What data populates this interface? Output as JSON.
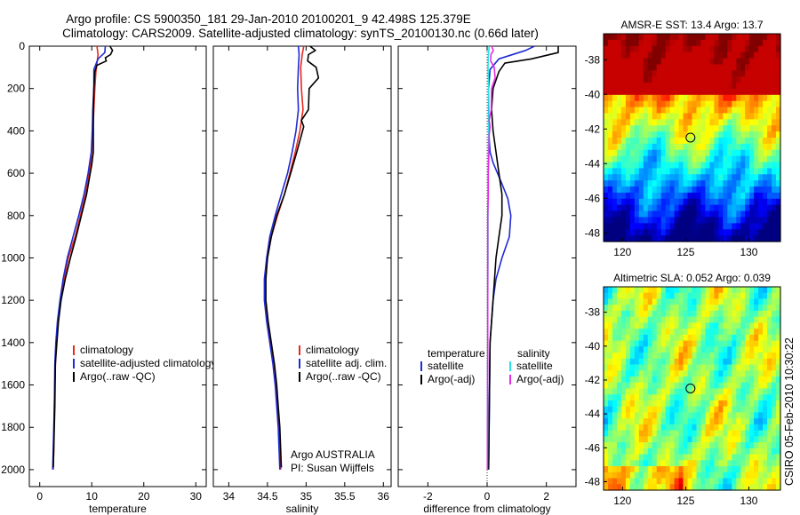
{
  "header": {
    "line1": "Argo profile: CS 5900350_181 29-Jan-2010 20100201_9 42.498S 125.379E",
    "line2": "Climatology: CARS2009. Satellite-adjusted climatology: synTS_20100130.nc (0.66d later)"
  },
  "side_note": "CSIRO 05-Feb-2010 10:30:22",
  "colors": {
    "climatology": "#e8281e",
    "satellite": "#1f2bd4",
    "argo": "#000000",
    "salinity_sat": "#2ae0e6",
    "salinity_argo": "#e62ae6"
  },
  "chart_data": [
    {
      "type": "line",
      "xlabel": "temperature",
      "x_ticks": [
        "0",
        "10",
        "20",
        "30"
      ],
      "y_ticks": [
        "0",
        "200",
        "400",
        "600",
        "800",
        "1000",
        "1200",
        "1400",
        "1600",
        "1800",
        "2000"
      ],
      "xlim": [
        -2,
        32
      ],
      "ylim": [
        2080,
        0
      ],
      "legend": [
        "climatology",
        "satellite-adjusted climatology",
        "Argo(..raw -QC)"
      ],
      "series": [
        {
          "name": "climatology",
          "color": "#e8281e",
          "points": [
            [
              11,
              0
            ],
            [
              11.2,
              40
            ],
            [
              11,
              80
            ],
            [
              10.8,
              120
            ],
            [
              10.6,
              200
            ],
            [
              10.4,
              300
            ],
            [
              10.2,
              400
            ],
            [
              10,
              500
            ],
            [
              9.8,
              550
            ],
            [
              9.5,
              600
            ],
            [
              8.8,
              700
            ],
            [
              7.8,
              800
            ],
            [
              6.8,
              900
            ],
            [
              5.5,
              1000
            ],
            [
              4.7,
              1100
            ],
            [
              4,
              1200
            ],
            [
              3.5,
              1300
            ],
            [
              3.2,
              1400
            ],
            [
              3,
              1500
            ],
            [
              2.8,
              1700
            ],
            [
              2.7,
              1900
            ],
            [
              2.6,
              2000
            ]
          ]
        },
        {
          "name": "satellite-adjusted climatology",
          "color": "#1f2bd4",
          "points": [
            [
              12.6,
              0
            ],
            [
              12.5,
              30
            ],
            [
              11.2,
              60
            ],
            [
              10.4,
              110
            ],
            [
              10.4,
              200
            ],
            [
              10.2,
              300
            ],
            [
              10.1,
              400
            ],
            [
              9.9,
              500
            ],
            [
              9.6,
              550
            ],
            [
              9.3,
              600
            ],
            [
              8.5,
              700
            ],
            [
              7.5,
              800
            ],
            [
              6.4,
              900
            ],
            [
              5.3,
              1000
            ],
            [
              4.5,
              1100
            ],
            [
              3.9,
              1200
            ],
            [
              3.4,
              1300
            ],
            [
              3.1,
              1400
            ],
            [
              2.9,
              1500
            ],
            [
              2.8,
              1700
            ],
            [
              2.6,
              1900
            ],
            [
              2.5,
              2000
            ]
          ]
        },
        {
          "name": "Argo(..raw -QC)",
          "color": "#000000",
          "points": [
            [
              13.5,
              0
            ],
            [
              14,
              20
            ],
            [
              13.6,
              40
            ],
            [
              12.6,
              55
            ],
            [
              12.8,
              70
            ],
            [
              11,
              90
            ],
            [
              10.6,
              120
            ],
            [
              10.4,
              200
            ],
            [
              10.3,
              300
            ],
            [
              10.3,
              400
            ],
            [
              10.3,
              500
            ],
            [
              10,
              560
            ],
            [
              9.7,
              600
            ],
            [
              9,
              700
            ],
            [
              8,
              800
            ],
            [
              7,
              900
            ],
            [
              5.9,
              1000
            ],
            [
              4.9,
              1100
            ],
            [
              4.1,
              1200
            ],
            [
              3.6,
              1300
            ],
            [
              3.3,
              1400
            ],
            [
              3,
              1500
            ],
            [
              2.9,
              1700
            ],
            [
              2.7,
              1900
            ],
            [
              2.6,
              1990
            ]
          ]
        }
      ]
    },
    {
      "type": "line",
      "xlabel": "salinity",
      "x_ticks": [
        "34",
        "34.5",
        "35",
        "35.5",
        "36"
      ],
      "xlim": [
        33.8,
        36.1
      ],
      "ylim": [
        2080,
        0
      ],
      "legend": [
        "climatology",
        "satellite adj. clim.",
        "Argo(..raw -QC)"
      ],
      "annotation": [
        "Argo AUSTRALIA",
        "PI: Susan Wijffels"
      ],
      "series": [
        {
          "name": "climatology",
          "color": "#e8281e",
          "points": [
            [
              34.97,
              0
            ],
            [
              34.95,
              40
            ],
            [
              34.93,
              100
            ],
            [
              34.94,
              200
            ],
            [
              34.96,
              300
            ],
            [
              34.92,
              400
            ],
            [
              34.86,
              500
            ],
            [
              34.79,
              600
            ],
            [
              34.72,
              700
            ],
            [
              34.63,
              800
            ],
            [
              34.55,
              900
            ],
            [
              34.5,
              1000
            ],
            [
              34.47,
              1100
            ],
            [
              34.47,
              1200
            ],
            [
              34.5,
              1300
            ],
            [
              34.54,
              1400
            ],
            [
              34.58,
              1500
            ],
            [
              34.61,
              1600
            ],
            [
              34.63,
              1700
            ],
            [
              34.65,
              1800
            ],
            [
              34.66,
              1900
            ],
            [
              34.67,
              2000
            ]
          ]
        },
        {
          "name": "satellite adj. clim.",
          "color": "#1f2bd4",
          "points": [
            [
              34.9,
              0
            ],
            [
              34.91,
              40
            ],
            [
              34.9,
              100
            ],
            [
              34.89,
              200
            ],
            [
              34.9,
              300
            ],
            [
              34.87,
              400
            ],
            [
              34.82,
              500
            ],
            [
              34.76,
              600
            ],
            [
              34.68,
              700
            ],
            [
              34.6,
              800
            ],
            [
              34.53,
              900
            ],
            [
              34.49,
              1000
            ],
            [
              34.46,
              1100
            ],
            [
              34.46,
              1200
            ],
            [
              34.49,
              1300
            ],
            [
              34.53,
              1400
            ],
            [
              34.57,
              1500
            ],
            [
              34.6,
              1600
            ],
            [
              34.62,
              1700
            ],
            [
              34.64,
              1800
            ],
            [
              34.65,
              1900
            ],
            [
              34.66,
              2000
            ]
          ]
        },
        {
          "name": "Argo(..raw -QC)",
          "color": "#000000",
          "points": [
            [
              35.05,
              0
            ],
            [
              35.12,
              20
            ],
            [
              35.03,
              40
            ],
            [
              35.02,
              70
            ],
            [
              35.13,
              100
            ],
            [
              35.16,
              150
            ],
            [
              35.04,
              200
            ],
            [
              35.03,
              300
            ],
            [
              34.94,
              350
            ],
            [
              34.97,
              380
            ],
            [
              34.94,
              420
            ],
            [
              34.88,
              500
            ],
            [
              34.8,
              600
            ],
            [
              34.72,
              700
            ],
            [
              34.62,
              800
            ],
            [
              34.55,
              900
            ],
            [
              34.5,
              1000
            ],
            [
              34.48,
              1100
            ],
            [
              34.48,
              1200
            ],
            [
              34.51,
              1300
            ],
            [
              34.55,
              1400
            ],
            [
              34.59,
              1500
            ],
            [
              34.62,
              1600
            ],
            [
              34.64,
              1700
            ],
            [
              34.66,
              1800
            ],
            [
              34.67,
              1900
            ],
            [
              34.68,
              1990
            ]
          ]
        }
      ]
    },
    {
      "type": "line",
      "xlabel": "difference from climatology",
      "x_ticks": [
        "-2",
        "0",
        "2"
      ],
      "xlim": [
        -3,
        3
      ],
      "ylim": [
        2080,
        0
      ],
      "legend_headers": [
        "temperature",
        "salinity"
      ],
      "legend": [
        "satellite",
        "Argo(-adj)",
        "satellite",
        "Argo(-adj)"
      ],
      "series": [
        {
          "name": "satellite",
          "group": "temperature",
          "color": "#1f2bd4",
          "points": [
            [
              1.6,
              0
            ],
            [
              1.3,
              20
            ],
            [
              0.4,
              60
            ],
            [
              0.1,
              110
            ],
            [
              0.05,
              200
            ],
            [
              0.05,
              400
            ],
            [
              0.1,
              500
            ],
            [
              0.2,
              550
            ],
            [
              0.5,
              650
            ],
            [
              0.7,
              720
            ],
            [
              0.8,
              800
            ],
            [
              0.75,
              900
            ],
            [
              0.5,
              1000
            ],
            [
              0.3,
              1100
            ],
            [
              0.2,
              1200
            ],
            [
              0.1,
              1400
            ],
            [
              0.05,
              2000
            ]
          ]
        },
        {
          "name": "Argo(-adj)",
          "group": "temperature",
          "color": "#000000",
          "points": [
            [
              2.4,
              0
            ],
            [
              2.4,
              30
            ],
            [
              1.5,
              60
            ],
            [
              0.6,
              80
            ],
            [
              0.4,
              120
            ],
            [
              0.2,
              200
            ],
            [
              0.15,
              300
            ],
            [
              0.2,
              400
            ],
            [
              0.3,
              500
            ],
            [
              0.4,
              600
            ],
            [
              0.5,
              700
            ],
            [
              0.5,
              800
            ],
            [
              0.4,
              900
            ],
            [
              0.3,
              1000
            ],
            [
              0.2,
              1200
            ],
            [
              0.1,
              1400
            ],
            [
              0.05,
              2000
            ]
          ]
        },
        {
          "name": "satellite",
          "group": "salinity",
          "color": "#2ae0e6",
          "points": [
            [
              0.07,
              0
            ],
            [
              0.04,
              50
            ],
            [
              0.03,
              100
            ],
            [
              0.05,
              200
            ],
            [
              0.06,
              300
            ],
            [
              0.05,
              400
            ],
            [
              0.04,
              500
            ],
            [
              0.03,
              700
            ],
            [
              0.03,
              1000
            ],
            [
              0.02,
              1200
            ],
            [
              0.02,
              1500
            ],
            [
              0.01,
              2000
            ]
          ]
        },
        {
          "name": "Argo(-adj)",
          "group": "salinity",
          "color": "#e62ae6",
          "points": [
            [
              0.15,
              0
            ],
            [
              0.21,
              20
            ],
            [
              0.13,
              40
            ],
            [
              0.12,
              70
            ],
            [
              0.24,
              100
            ],
            [
              0.27,
              150
            ],
            [
              0.15,
              200
            ],
            [
              0.14,
              300
            ],
            [
              0.07,
              350
            ],
            [
              0.1,
              380
            ],
            [
              0.07,
              420
            ],
            [
              0.06,
              500
            ],
            [
              0.04,
              600
            ],
            [
              0.04,
              700
            ],
            [
              0.02,
              800
            ],
            [
              0.02,
              1000
            ],
            [
              0.02,
              1200
            ],
            [
              0.02,
              1400
            ],
            [
              0.01,
              2000
            ]
          ]
        }
      ]
    },
    {
      "type": "heatmap",
      "title": "AMSR-E SST: 13.4  Argo: 13.7",
      "x_ticks": [
        "120",
        "125",
        "130"
      ],
      "y_ticks": [
        "-38",
        "-40",
        "-42",
        "-44",
        "-46",
        "-48"
      ],
      "xlim": [
        118.5,
        132.5
      ],
      "ylim": [
        -48.5,
        -36.5
      ],
      "marker": {
        "lon": 125.379,
        "lat": -42.498
      }
    },
    {
      "type": "heatmap",
      "title": "Altimetric SLA: 0.052  Argo: 0.039",
      "x_ticks": [
        "120",
        "125",
        "130"
      ],
      "y_ticks": [
        "-38",
        "-40",
        "-42",
        "-44",
        "-46",
        "-48"
      ],
      "xlim": [
        118.5,
        132.5
      ],
      "ylim": [
        -48.5,
        -36.5
      ],
      "marker": {
        "lon": 125.379,
        "lat": -42.498
      }
    }
  ]
}
